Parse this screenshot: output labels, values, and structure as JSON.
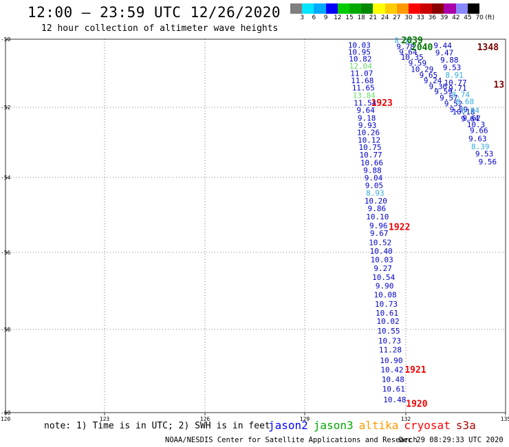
{
  "header": {
    "title": "12:00 – 23:59 UTC 12/26/2020",
    "subtitle": "12 hour collection of altimeter wave heights"
  },
  "colorbar": {
    "colors": [
      "#7f7f7f",
      "#00e5ff",
      "#00aaff",
      "#0000ff",
      "#00cc00",
      "#00aa00",
      "#008800",
      "#ffff00",
      "#ffcc00",
      "#ff9900",
      "#ff0000",
      "#cc0000",
      "#880000",
      "#aa00aa",
      "#8888ff",
      "#000000"
    ],
    "labels": [
      "3",
      "6",
      "9",
      "12",
      "15",
      "18",
      "21",
      "24",
      "27",
      "30",
      "33",
      "36",
      "39",
      "42",
      "45",
      "70"
    ],
    "unit": "(ft)"
  },
  "chart_data": {
    "type": "scatter",
    "title": "12:00 – 23:59 UTC 12/26/2020",
    "subtitle": "12 hour collection of altimeter wave heights",
    "xlim": [
      120,
      135
    ],
    "ylim": [
      -60,
      -50
    ],
    "x_ticks": [
      "120",
      "123",
      "126",
      "129",
      "132",
      "135"
    ],
    "y_ticks": [
      "-50",
      "-52",
      "-54",
      "-56",
      "-58",
      "-60"
    ],
    "grid": true,
    "series": [
      {
        "name": "jason2",
        "color": "#0000cc",
        "points": [
          {
            "lon": 130.62,
            "lat": -50.17,
            "v": "10.03",
            "c": "#0000cc"
          },
          {
            "lon": 130.62,
            "lat": -50.37,
            "v": "10.95",
            "c": "#0000cc"
          },
          {
            "lon": 130.65,
            "lat": -50.58,
            "v": "10.82",
            "c": "#0000cc"
          },
          {
            "lon": 130.66,
            "lat": -50.79,
            "v": "12.04",
            "c": "#66dd66"
          },
          {
            "lon": 130.69,
            "lat": -51.0,
            "v": "11.07",
            "c": "#0000cc"
          },
          {
            "lon": 130.71,
            "lat": -51.21,
            "v": "11.68",
            "c": "#0000cc"
          },
          {
            "lon": 130.74,
            "lat": -51.42,
            "v": "11.65",
            "c": "#0000cc"
          },
          {
            "lon": 130.76,
            "lat": -51.65,
            "v": "13.84",
            "c": "#66dd66"
          },
          {
            "lon": 130.79,
            "lat": -51.87,
            "v": "11.54",
            "c": "#0000cc"
          },
          {
            "lon": 130.81,
            "lat": -52.08,
            "v": "9.64",
            "c": "#0000cc"
          },
          {
            "lon": 130.84,
            "lat": -52.3,
            "v": "9.18",
            "c": "#0000cc"
          },
          {
            "lon": 130.86,
            "lat": -52.51,
            "v": "9.93",
            "c": "#0000cc"
          },
          {
            "lon": 130.89,
            "lat": -52.72,
            "v": "10.26",
            "c": "#0000cc"
          },
          {
            "lon": 130.91,
            "lat": -52.93,
            "v": "10.12",
            "c": "#0000cc"
          },
          {
            "lon": 130.94,
            "lat": -53.14,
            "v": "10.75",
            "c": "#0000cc"
          },
          {
            "lon": 130.96,
            "lat": -53.35,
            "v": "10.77",
            "c": "#0000cc"
          },
          {
            "lon": 130.99,
            "lat": -53.58,
            "v": "10.66",
            "c": "#0000cc"
          },
          {
            "lon": 131.01,
            "lat": -53.79,
            "v": "9.88",
            "c": "#0000cc"
          },
          {
            "lon": 131.04,
            "lat": -54.01,
            "v": "9.04",
            "c": "#0000cc"
          },
          {
            "lon": 131.06,
            "lat": -54.21,
            "v": "9.05",
            "c": "#0000cc"
          },
          {
            "lon": 131.09,
            "lat": -54.41,
            "v": "8.93",
            "c": "#33aadd"
          },
          {
            "lon": 131.11,
            "lat": -54.62,
            "v": "10.20",
            "c": "#0000cc"
          },
          {
            "lon": 131.14,
            "lat": -54.83,
            "v": "9.86",
            "c": "#0000cc"
          },
          {
            "lon": 131.16,
            "lat": -55.05,
            "v": "10.10",
            "c": "#0000cc"
          },
          {
            "lon": 131.19,
            "lat": -55.28,
            "v": "9.96",
            "c": "#0000cc"
          },
          {
            "lon": 131.21,
            "lat": -55.49,
            "v": "9.67",
            "c": "#0000cc"
          },
          {
            "lon": 131.24,
            "lat": -55.73,
            "v": "10.52",
            "c": "#0000cc"
          },
          {
            "lon": 131.27,
            "lat": -55.96,
            "v": "10.40",
            "c": "#0000cc"
          },
          {
            "lon": 131.29,
            "lat": -56.19,
            "v": "10.03",
            "c": "#0000cc"
          },
          {
            "lon": 131.32,
            "lat": -56.41,
            "v": "9.27",
            "c": "#0000cc"
          },
          {
            "lon": 131.34,
            "lat": -56.64,
            "v": "10.54",
            "c": "#0000cc"
          },
          {
            "lon": 131.37,
            "lat": -56.87,
            "v": "9.90",
            "c": "#0000cc"
          },
          {
            "lon": 131.39,
            "lat": -57.1,
            "v": "10.08",
            "c": "#0000cc"
          },
          {
            "lon": 131.42,
            "lat": -57.34,
            "v": "10.73",
            "c": "#0000cc"
          },
          {
            "lon": 131.44,
            "lat": -57.57,
            "v": "10.61",
            "c": "#0000cc"
          },
          {
            "lon": 131.47,
            "lat": -57.79,
            "v": "10.02",
            "c": "#0000cc"
          },
          {
            "lon": 131.49,
            "lat": -58.03,
            "v": "10.55",
            "c": "#0000cc"
          },
          {
            "lon": 131.52,
            "lat": -58.27,
            "v": "10.73",
            "c": "#0000cc"
          },
          {
            "lon": 131.54,
            "lat": -58.49,
            "v": "11.28",
            "c": "#0000cc"
          },
          {
            "lon": 131.57,
            "lat": -58.74,
            "v": "10.90",
            "c": "#0000cc"
          },
          {
            "lon": 131.59,
            "lat": -58.97,
            "v": "10.42",
            "c": "#0000cc"
          },
          {
            "lon": 131.62,
            "lat": -59.2,
            "v": "10.48",
            "c": "#0000cc"
          },
          {
            "lon": 131.64,
            "lat": -59.43,
            "v": "10.61",
            "c": "#0000cc"
          },
          {
            "lon": 131.67,
            "lat": -59.69,
            "v": "10.48",
            "c": "#0000cc"
          }
        ]
      },
      {
        "name": "jason3",
        "color": "#00aa00",
        "points": [
          {
            "lon": 131.93,
            "lat": -50.03,
            "v": "8.52",
            "c": "#33aadd"
          },
          {
            "lon": 131.99,
            "lat": -50.21,
            "v": "9.78",
            "c": "#0000cc"
          },
          {
            "lon": 132.07,
            "lat": -50.37,
            "v": "9.64",
            "c": "#0000cc"
          },
          {
            "lon": 132.19,
            "lat": -50.53,
            "v": "10.35",
            "c": "#0000cc"
          },
          {
            "lon": 132.35,
            "lat": -50.7,
            "v": "9.59",
            "c": "#0000cc"
          },
          {
            "lon": 132.49,
            "lat": -50.88,
            "v": "10.29",
            "c": "#0000cc"
          },
          {
            "lon": 132.68,
            "lat": -51.05,
            "v": "9.65",
            "c": "#0000cc"
          },
          {
            "lon": 132.81,
            "lat": -51.21,
            "v": "9.24",
            "c": "#0000cc"
          },
          {
            "lon": 132.97,
            "lat": -51.38,
            "v": "9.36",
            "c": "#0000cc"
          },
          {
            "lon": 133.13,
            "lat": -51.54,
            "v": "9.59",
            "c": "#0000cc"
          },
          {
            "lon": 133.29,
            "lat": -51.72,
            "v": "9.57",
            "c": "#0000cc"
          },
          {
            "lon": 133.43,
            "lat": -51.89,
            "v": "9.52",
            "c": "#0000cc"
          },
          {
            "lon": 133.59,
            "lat": -52.06,
            "v": "9.59",
            "c": "#0000cc"
          }
        ]
      },
      {
        "name": "altika",
        "color": "#ff9900",
        "points": [
          {
            "lon": 133.11,
            "lat": -50.18,
            "v": "9.44",
            "c": "#0000cc"
          },
          {
            "lon": 133.16,
            "lat": -50.39,
            "v": "9.47",
            "c": "#0000cc"
          },
          {
            "lon": 133.31,
            "lat": -50.61,
            "v": "9.88",
            "c": "#0000cc"
          },
          {
            "lon": 133.39,
            "lat": -50.83,
            "v": "9.53",
            "c": "#0000cc"
          },
          {
            "lon": 133.46,
            "lat": -51.05,
            "v": "8.91",
            "c": "#33aadd"
          },
          {
            "lon": 133.49,
            "lat": -51.27,
            "v": "10.77",
            "c": "#0000cc"
          },
          {
            "lon": 133.56,
            "lat": -51.43,
            "v": "9.71",
            "c": "#0000cc"
          },
          {
            "lon": 133.65,
            "lat": -51.63,
            "v": "8.74",
            "c": "#33aadd"
          },
          {
            "lon": 133.78,
            "lat": -51.83,
            "v": "8.68",
            "c": "#33aadd"
          },
          {
            "lon": 133.74,
            "lat": -52.13,
            "v": "10.18",
            "c": "#0000cc"
          },
          {
            "lon": 133.94,
            "lat": -52.09,
            "v": "8.84",
            "c": "#33aadd"
          },
          {
            "lon": 133.93,
            "lat": -52.32,
            "v": "9.64",
            "c": "#0000cc"
          },
          {
            "lon": 133.98,
            "lat": -52.3,
            "v": "9.62",
            "c": "#0000cc"
          },
          {
            "lon": 134.11,
            "lat": -52.49,
            "v": "10.3",
            "c": "#0000cc"
          },
          {
            "lon": 134.2,
            "lat": -52.66,
            "v": "9.66",
            "c": "#0000cc"
          },
          {
            "lon": 134.16,
            "lat": -52.89,
            "v": "9.63",
            "c": "#0000cc"
          },
          {
            "lon": 134.24,
            "lat": -53.12,
            "v": "8.39",
            "c": "#33aadd"
          },
          {
            "lon": 134.36,
            "lat": -53.32,
            "v": "9.53",
            "c": "#0000cc"
          },
          {
            "lon": 134.46,
            "lat": -53.55,
            "v": "9.56",
            "c": "#0000cc"
          }
        ]
      }
    ],
    "annotations": [
      {
        "text": "1923",
        "lon": 131.29,
        "lat": -51.86,
        "color": "#ee0000"
      },
      {
        "text": "1922",
        "lon": 131.81,
        "lat": -55.31,
        "color": "#ee0000"
      },
      {
        "text": "1921",
        "lon": 132.29,
        "lat": -58.96,
        "color": "#ee0000"
      },
      {
        "text": "1920",
        "lon": 132.33,
        "lat": -59.78,
        "color": "#ee0000"
      },
      {
        "text": "2039",
        "lon": 132.19,
        "lat": -50.02,
        "color": "#007700"
      },
      {
        "text": "2040",
        "lon": 132.49,
        "lat": -50.22,
        "color": "#007700"
      },
      {
        "text": "1348",
        "lon": 134.47,
        "lat": -50.22,
        "color": "#770000"
      },
      {
        "text": "13",
        "lon": 134.8,
        "lat": -51.32,
        "color": "#770000"
      }
    ]
  },
  "footer": {
    "note": "note: 1) Time is in UTC; 2) SWH is in feet",
    "legend": [
      {
        "label": "jason2",
        "color": "#0000ff"
      },
      {
        "label": "jason3",
        "color": "#00aa00"
      },
      {
        "label": "altika",
        "color": "#ff9900"
      },
      {
        "label": "cryosat",
        "color": "#ff0000"
      },
      {
        "label": "s3a",
        "color": "#aa0000"
      }
    ],
    "credit": "NOAA/NESDIS Center for Satellite Applications and Research",
    "timestamp": "Dec 29 08:29:33 UTC 2020"
  }
}
